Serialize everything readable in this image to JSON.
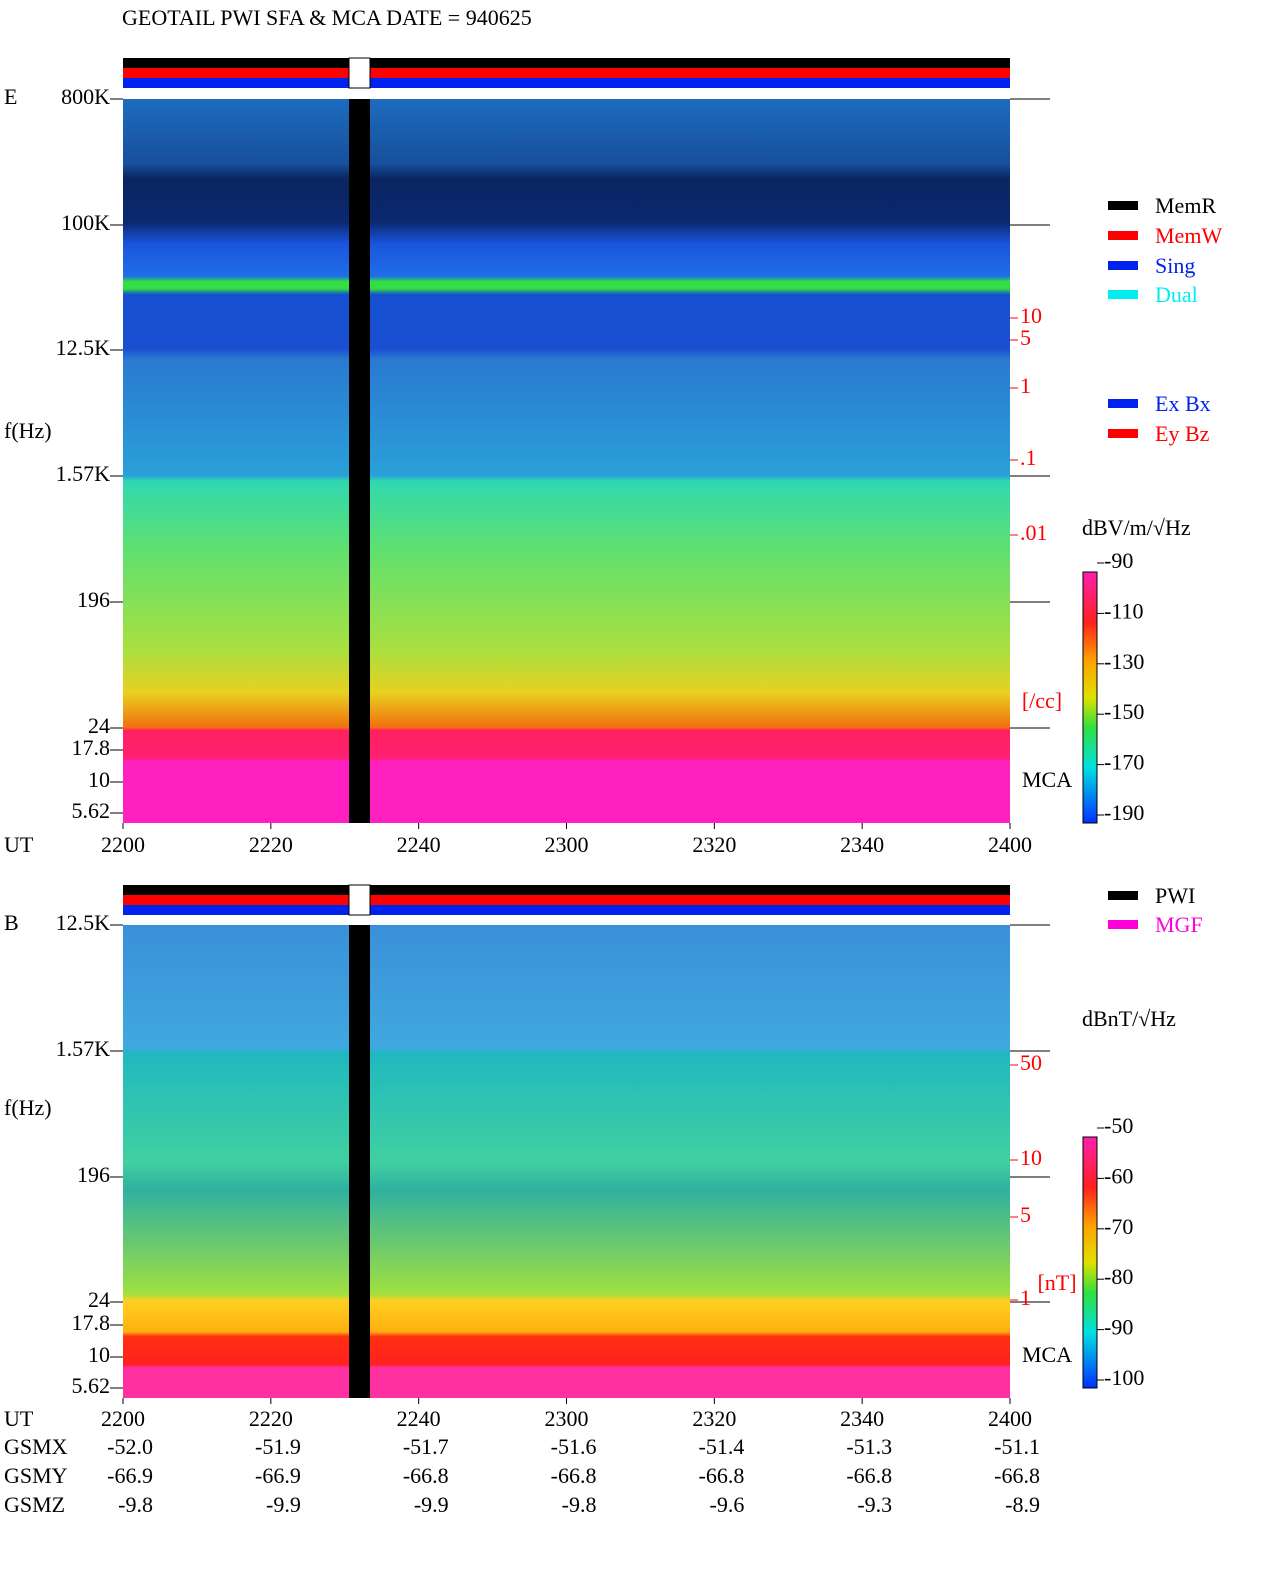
{
  "title": "GEOTAIL  PWI SFA & MCA   DATE = 940625",
  "panels": [
    {
      "label": "E",
      "y_axis_label": "f(Hz)",
      "x_axis_label": "UT",
      "mca_label": "MCA",
      "freq_ticks": [
        "800K",
        "100K",
        "12.5K",
        "1.57K",
        "196",
        "24",
        "17.8",
        "10",
        "5.62"
      ],
      "time_ticks": [
        "2200",
        "2220",
        "2240",
        "2300",
        "2320",
        "2340",
        "2400"
      ],
      "right_scale": [
        ".01",
        ".1",
        "1",
        "5",
        "10"
      ],
      "right_scale_unit": "[/cc]",
      "colorbar": {
        "unit": "dBV/m/√Hz",
        "ticks": [
          -90,
          -110,
          -130,
          -150,
          -170,
          -190
        ]
      }
    },
    {
      "label": "B",
      "y_axis_label": "f(Hz)",
      "x_axis_label": "UT",
      "mca_label": "MCA",
      "freq_ticks": [
        "12.5K",
        "1.57K",
        "196",
        "24",
        "17.8",
        "10",
        "5.62"
      ],
      "time_ticks": [
        "2200",
        "2220",
        "2240",
        "2300",
        "2320",
        "2340",
        "2400"
      ],
      "right_scale": [
        "1",
        "5",
        "10",
        "50"
      ],
      "right_scale_unit": "[nT]",
      "colorbar": {
        "unit": "dBnT/√Hz",
        "ticks": [
          -50,
          -60,
          -70,
          -80,
          -90,
          -100
        ]
      }
    }
  ],
  "mode_legend": [
    {
      "name": "MemR",
      "color": "#000000"
    },
    {
      "name": "MemW",
      "color": "#ff0000"
    },
    {
      "name": "Sing",
      "color": "#0022ee"
    },
    {
      "name": "Dual",
      "color": "#00eeee"
    }
  ],
  "antenna_legend": [
    {
      "name": "Ex Bx",
      "color": "#0022ee"
    },
    {
      "name": "Ey Bz",
      "color": "#ff0000"
    }
  ],
  "source_legend": [
    {
      "name": "PWI",
      "color": "#000000"
    },
    {
      "name": "MGF",
      "color": "#ff00dd"
    }
  ],
  "orbit": [
    {
      "name": "GSMX",
      "values": [
        "-52.0",
        "-51.9",
        "-51.7",
        "-51.6",
        "-51.4",
        "-51.3",
        "-51.1"
      ]
    },
    {
      "name": "GSMY",
      "values": [
        "-66.9",
        "-66.9",
        "-66.8",
        "-66.8",
        "-66.8",
        "-66.8",
        "-66.8"
      ]
    },
    {
      "name": "GSMZ",
      "values": [
        "-9.8",
        "-9.9",
        "-9.9",
        "-9.8",
        "-9.6",
        "-9.3",
        "-8.9"
      ]
    }
  ]
}
